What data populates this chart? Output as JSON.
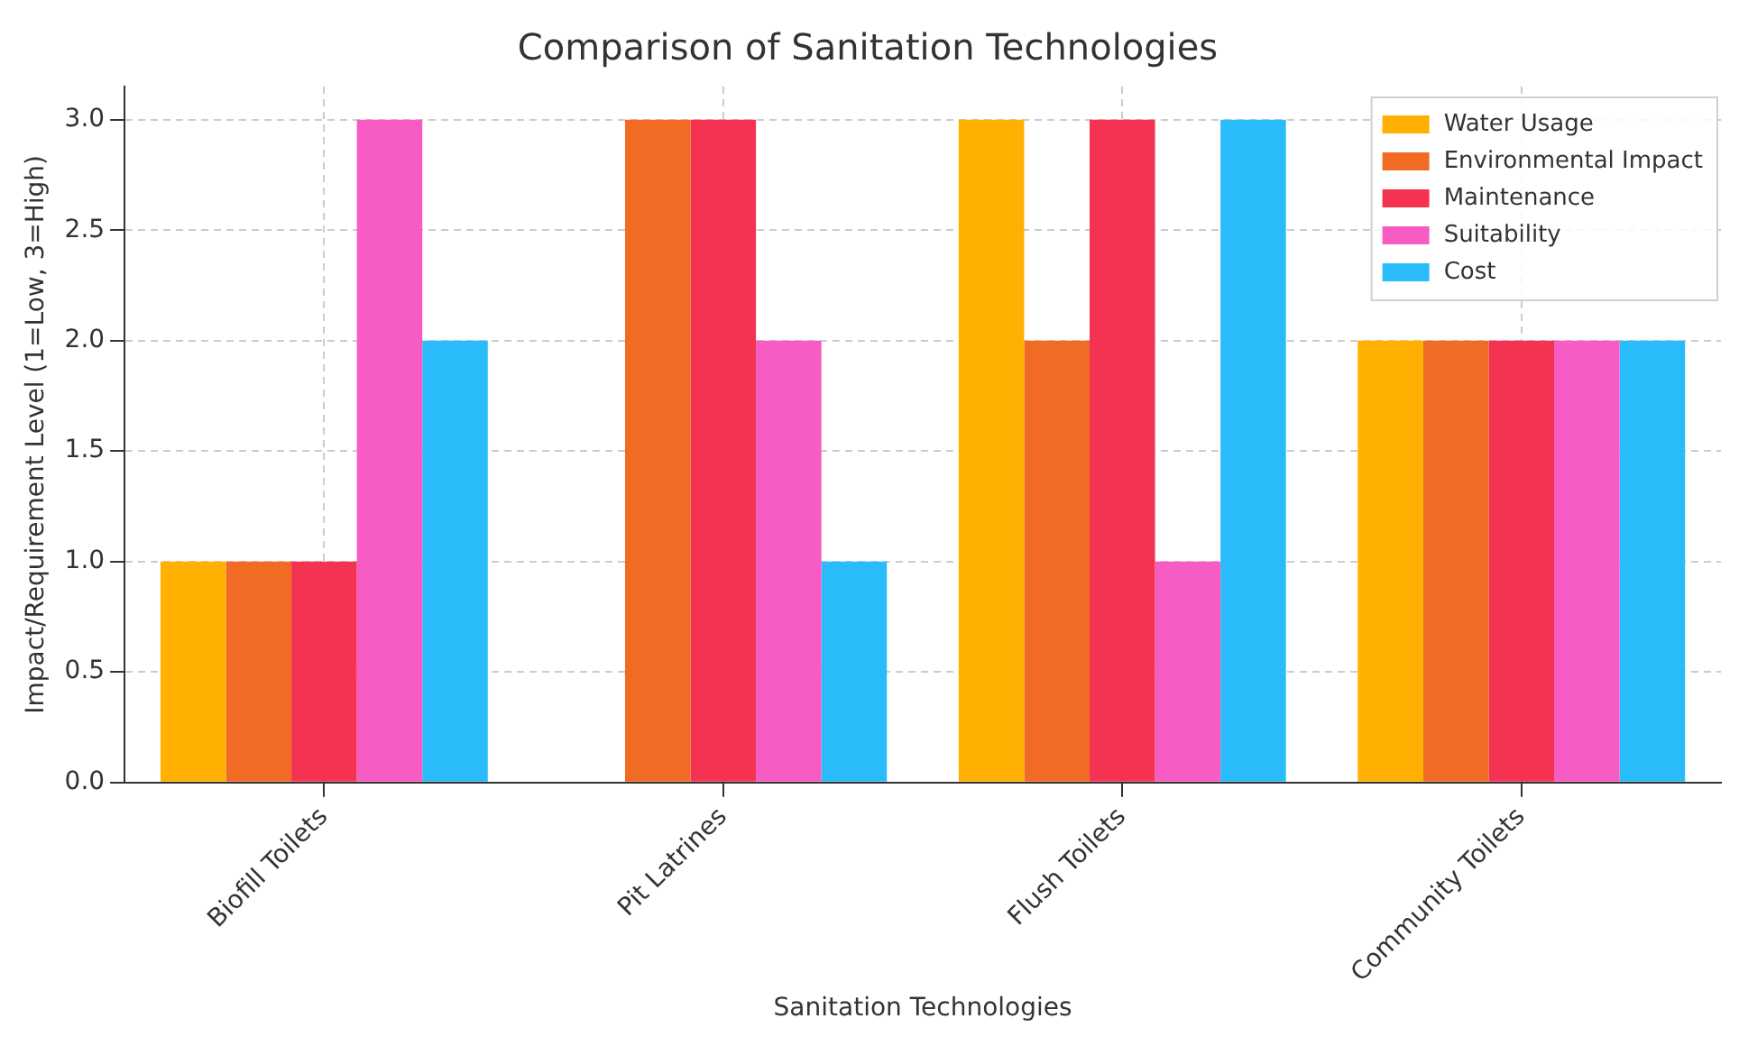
{
  "chart_data": {
    "type": "bar",
    "title": "Comparison of Sanitation Technologies",
    "xlabel": "Sanitation Technologies",
    "ylabel": "Impact/Requirement Level (1=Low, 3=High)",
    "categories": [
      "Biofill Toilets",
      "Pit Latrines",
      "Flush Toilets",
      "Community Toilets"
    ],
    "series": [
      {
        "name": "Water Usage",
        "color": "#ffb000",
        "values": [
          1,
          0,
          3,
          2
        ]
      },
      {
        "name": "Environmental Impact",
        "color": "#f26b24",
        "values": [
          1,
          3,
          2,
          2
        ]
      },
      {
        "name": "Maintenance",
        "color": "#f43353",
        "values": [
          1,
          3,
          3,
          2
        ]
      },
      {
        "name": "Suitability",
        "color": "#f75cc4",
        "values": [
          3,
          2,
          1,
          2
        ]
      },
      {
        "name": "Cost",
        "color": "#29bbfa",
        "values": [
          2,
          1,
          3,
          2
        ]
      }
    ],
    "ylim": [
      0,
      3.15
    ],
    "yticks": [
      {
        "value": 0,
        "label": "0.0"
      },
      0.5,
      {
        "value": 1,
        "label": "1.0"
      },
      1.5,
      {
        "value": 2,
        "label": "2.0"
      },
      2.5,
      {
        "value": 3,
        "label": "3.0"
      }
    ],
    "grid": true,
    "legend": "top right"
  }
}
